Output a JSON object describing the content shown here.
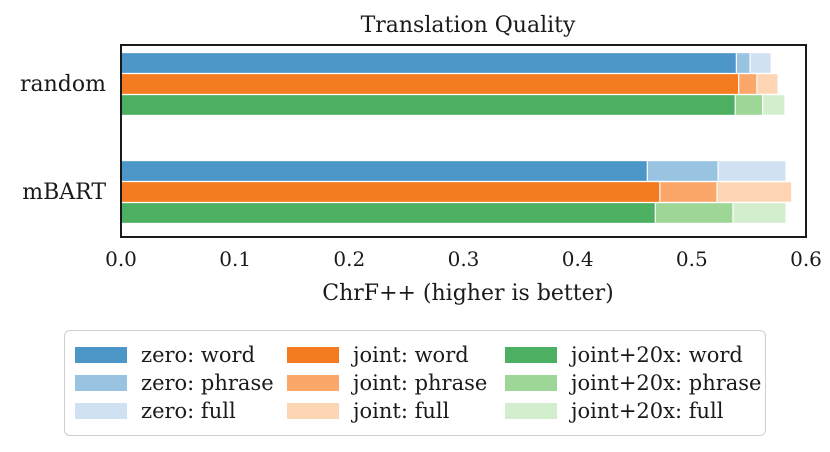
{
  "chart_data": {
    "type": "bar",
    "orientation": "horizontal",
    "stacked_cumulative": true,
    "title": "Translation Quality",
    "xlabel": "ChrF++ (higher is better)",
    "ylabel": "",
    "xlim": [
      0,
      0.6
    ],
    "xticks": [
      "0.0",
      "0.1",
      "0.2",
      "0.3",
      "0.4",
      "0.5",
      "0.6"
    ],
    "categories": [
      "random",
      "mBART"
    ],
    "grid": false,
    "legend_position": "bottom",
    "groups": [
      {
        "name": "zero",
        "color_word": "#4c96c8",
        "color_phrase": "#98c4e2",
        "color_full": "#d0e2f2",
        "values": {
          "random": {
            "word": 0.539,
            "phrase": 0.551,
            "full": 0.569
          },
          "mBART": {
            "word": 0.461,
            "phrase": 0.523,
            "full": 0.582
          }
        }
      },
      {
        "name": "joint",
        "color_word": "#f47b20",
        "color_phrase": "#fca76a",
        "color_full": "#fdd5b2",
        "values": {
          "random": {
            "word": 0.541,
            "phrase": 0.557,
            "full": 0.575
          },
          "mBART": {
            "word": 0.472,
            "phrase": 0.522,
            "full": 0.587
          }
        }
      },
      {
        "name": "joint+20x",
        "color_word": "#4caf62",
        "color_phrase": "#9ed698",
        "color_full": "#d3eecd",
        "values": {
          "random": {
            "word": 0.538,
            "phrase": 0.562,
            "full": 0.581
          },
          "mBART": {
            "word": 0.468,
            "phrase": 0.536,
            "full": 0.582
          }
        }
      }
    ]
  },
  "legend": {
    "items": [
      {
        "label": "zero: word",
        "color": "#4c96c8"
      },
      {
        "label": "zero: phrase",
        "color": "#98c4e2"
      },
      {
        "label": "zero: full",
        "color": "#d0e2f2"
      },
      {
        "label": "joint: word",
        "color": "#f47b20"
      },
      {
        "label": "joint: phrase",
        "color": "#fca76a"
      },
      {
        "label": "joint: full",
        "color": "#fdd5b2"
      },
      {
        "label": "joint+20x: word",
        "color": "#4caf62"
      },
      {
        "label": "joint+20x: phrase",
        "color": "#9ed698"
      },
      {
        "label": "joint+20x: full",
        "color": "#d3eecd"
      }
    ]
  }
}
